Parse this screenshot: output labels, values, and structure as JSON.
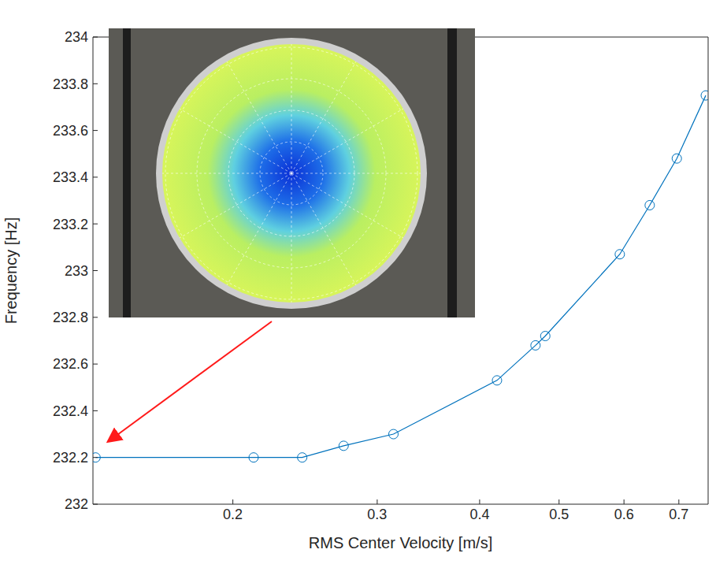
{
  "chart_data": {
    "type": "line",
    "x_label": "RMS Center Velocity [m/s]",
    "y_label": "Frequency [Hz]",
    "x": [
      0.136,
      0.212,
      0.243,
      0.273,
      0.314,
      0.42,
      0.468,
      0.481,
      0.593,
      0.645,
      0.696,
      0.755
    ],
    "values": [
      232.2,
      232.2,
      232.2,
      232.25,
      232.3,
      232.53,
      232.68,
      232.72,
      233.07,
      233.28,
      233.48,
      233.75
    ],
    "color": "#0072bd",
    "marker": "circle",
    "log": "x",
    "grid": false,
    "xlim": [
      0.135,
      0.76
    ],
    "xticks": [
      0.2,
      0.3,
      0.4,
      0.5,
      0.6,
      0.7
    ],
    "ylim": [
      232,
      234
    ],
    "yticks": [
      232,
      232.2,
      232.4,
      232.6,
      232.8,
      233,
      233.2,
      233.4,
      233.6,
      233.8,
      234
    ]
  }
}
